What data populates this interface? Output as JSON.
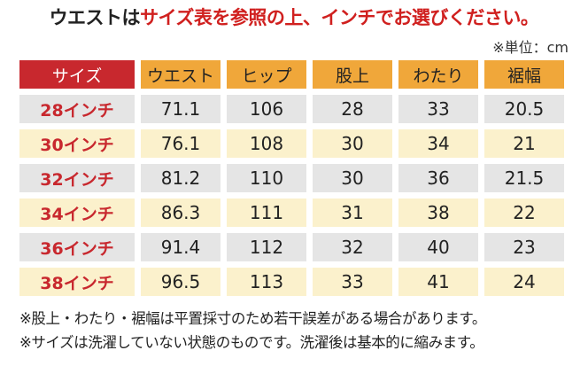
{
  "title": {
    "part1": "ウエストは",
    "part2": "サイズ表を参照の上、インチでお選びください。"
  },
  "unit": "※単位：cm",
  "table": {
    "headers": [
      "サイズ",
      "ウエスト",
      "ヒップ",
      "股上",
      "わたり",
      "裾幅"
    ],
    "rows": [
      {
        "size": "28インチ",
        "values": [
          "71.1",
          "106",
          "28",
          "33",
          "20.5"
        ]
      },
      {
        "size": "30インチ",
        "values": [
          "76.1",
          "108",
          "30",
          "34",
          "21"
        ]
      },
      {
        "size": "32インチ",
        "values": [
          "81.2",
          "110",
          "30",
          "36",
          "21.5"
        ]
      },
      {
        "size": "34インチ",
        "values": [
          "86.3",
          "111",
          "31",
          "38",
          "22"
        ]
      },
      {
        "size": "36インチ",
        "values": [
          "91.4",
          "112",
          "32",
          "40",
          "23"
        ]
      },
      {
        "size": "38インチ",
        "values": [
          "96.5",
          "113",
          "33",
          "41",
          "24"
        ]
      }
    ]
  },
  "notes": [
    "※股上・わたり・裾幅は平置採寸のため若干誤差がある場合があります。",
    "※サイズは洗濯していない状態のものです。洗濯後は基本的に縮みます。"
  ],
  "colors": {
    "accent_red": "#c8282e",
    "header_orange": "#f0a73a",
    "row_gray": "#e5e5e5",
    "row_cream": "#fbf1cc"
  }
}
